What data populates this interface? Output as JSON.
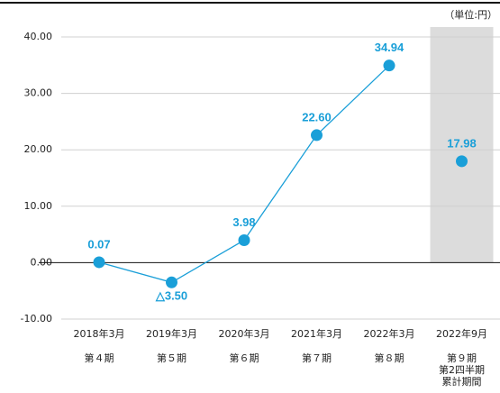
{
  "chart_data": {
    "type": "line",
    "unit_label": "（単位:円）",
    "categories": [
      "2018年3月",
      "2019年3月",
      "2020年3月",
      "2021年3月",
      "2022年3月",
      "2022年9月"
    ],
    "periods": [
      [
        "第４期"
      ],
      [
        "第５期"
      ],
      [
        "第６期"
      ],
      [
        "第７期"
      ],
      [
        "第８期"
      ],
      [
        "第９期",
        "第2四半期",
        "累計期間"
      ]
    ],
    "series": [
      {
        "color": "#1a9fd8",
        "values": [
          0.07,
          -3.5,
          3.98,
          22.6,
          34.94,
          null
        ],
        "value_labels": [
          "0.07",
          "△3.50",
          "3.98",
          "22.60",
          "34.94",
          null
        ]
      },
      {
        "color": "#1a9fd8",
        "shade_color": "#dcdcdc",
        "values": [
          null,
          null,
          null,
          null,
          null,
          17.98
        ],
        "value_labels": [
          null,
          null,
          null,
          null,
          null,
          "17.98"
        ]
      }
    ],
    "ylim": [
      -10,
      40
    ],
    "yticks": [
      {
        "value": -10,
        "label": "-10.00"
      },
      {
        "value": 0,
        "label": "0.00"
      },
      {
        "value": 10,
        "label": "10.00"
      },
      {
        "value": 20,
        "label": "20.00"
      },
      {
        "value": 30,
        "label": "30.00"
      },
      {
        "value": 40,
        "label": "40.00"
      }
    ],
    "grid": true
  }
}
